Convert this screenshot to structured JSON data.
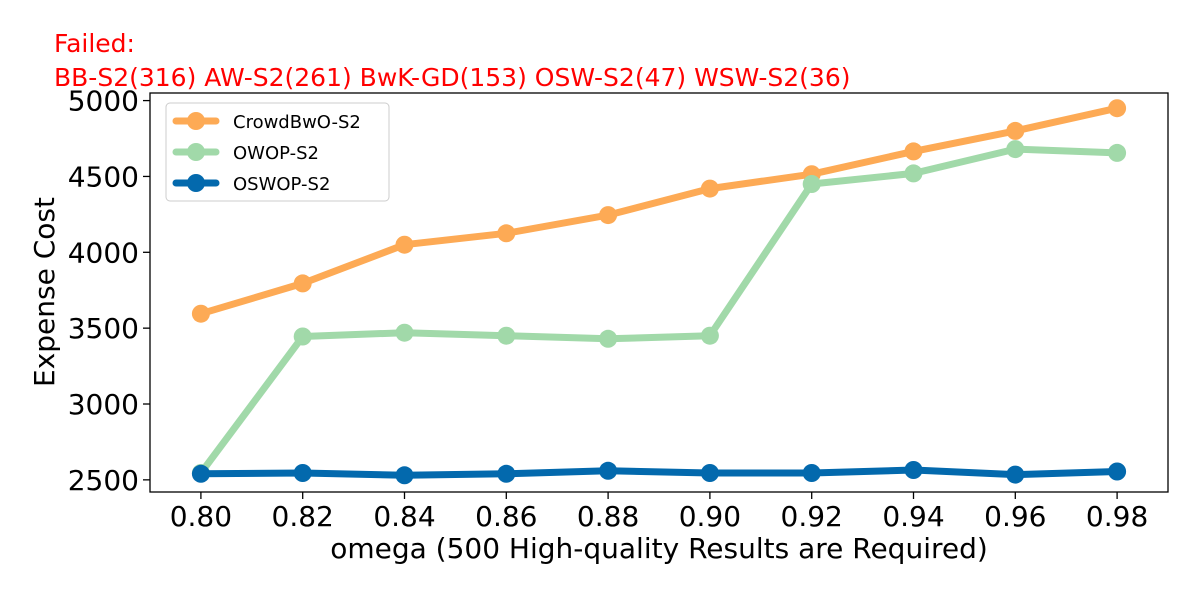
{
  "failed": {
    "heading": "Failed:",
    "items": "BB-S2(316) AW-S2(261) BwK-GD(153) OSW-S2(47) WSW-S2(36)"
  },
  "chart_data": {
    "type": "line",
    "xlabel": "omega (500 High-quality Results are Required)",
    "ylabel": "Expense Cost",
    "x": [
      0.8,
      0.82,
      0.84,
      0.86,
      0.88,
      0.9,
      0.92,
      0.94,
      0.96,
      0.98
    ],
    "x_tick_labels": [
      "0.80",
      "0.82",
      "0.84",
      "0.86",
      "0.88",
      "0.90",
      "0.92",
      "0.94",
      "0.96",
      "0.98"
    ],
    "xlim": [
      0.79,
      0.99
    ],
    "ylim": [
      2420,
      5050
    ],
    "y_ticks": [
      2500,
      3000,
      3500,
      4000,
      4500,
      5000
    ],
    "grid": false,
    "legend_position": "top-left",
    "series": [
      {
        "name": "CrowdBwO-S2",
        "color": "#fdaa55",
        "values": [
          3595,
          3795,
          4050,
          4125,
          4245,
          4420,
          4515,
          4665,
          4800,
          4950
        ]
      },
      {
        "name": "OWOP-S2",
        "color": "#a1d9a9",
        "values": [
          2545,
          3445,
          3470,
          3450,
          3430,
          3450,
          4450,
          4520,
          4680,
          4655
        ]
      },
      {
        "name": "OSWOP-S2",
        "color": "#0369ad",
        "values": [
          2540,
          2545,
          2530,
          2540,
          2560,
          2545,
          2545,
          2565,
          2535,
          2555
        ]
      }
    ]
  }
}
